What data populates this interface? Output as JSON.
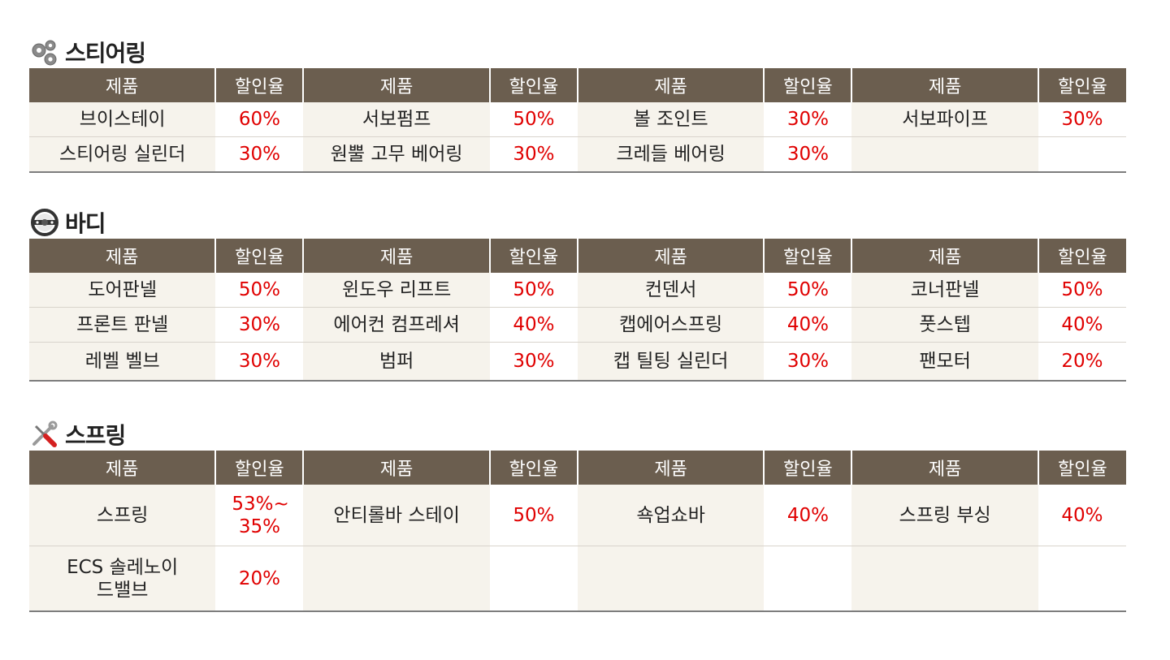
{
  "headers": {
    "product": "제품",
    "rate": "할인율"
  },
  "sections": [
    {
      "title": "스티어링",
      "icon": "gears-icon",
      "rows": [
        [
          [
            "브이스테이",
            "60%"
          ],
          [
            "서보펌프",
            "50%"
          ],
          [
            "볼 조인트",
            "30%"
          ],
          [
            "서보파이프",
            "30%"
          ]
        ],
        [
          [
            "스티어링 실린더",
            "30%"
          ],
          [
            "원뿔 고무 베어링",
            "30%"
          ],
          [
            "크레들 베어링",
            "30%"
          ],
          [
            "",
            ""
          ]
        ]
      ]
    },
    {
      "title": "바디",
      "icon": "steering-wheel-icon",
      "rows": [
        [
          [
            "도어판넬",
            "50%"
          ],
          [
            "윈도우 리프트",
            "50%"
          ],
          [
            "컨덴서",
            "50%"
          ],
          [
            "코너판넬",
            "50%"
          ]
        ],
        [
          [
            "프론트 판넬",
            "30%"
          ],
          [
            "에어컨 컴프레셔",
            "40%"
          ],
          [
            "캡에어스프링",
            "40%"
          ],
          [
            "풋스텝",
            "40%"
          ]
        ],
        [
          [
            "레벨 벨브",
            "30%"
          ],
          [
            "범퍼",
            "30%"
          ],
          [
            "캡 틸팅 실린더",
            "30%"
          ],
          [
            "팬모터",
            "20%"
          ]
        ]
      ]
    },
    {
      "title": "스프링",
      "icon": "tools-icon",
      "rows": [
        [
          [
            "스프링",
            "53%~ 35%"
          ],
          [
            "안티롤바 스테이",
            "50%"
          ],
          [
            "쇽업쇼바",
            "40%"
          ],
          [
            "스프링 부싱",
            "40%"
          ]
        ],
        [
          [
            "ECS 솔레노이드밸브",
            "20%"
          ],
          [
            "",
            ""
          ],
          [
            "",
            ""
          ],
          [
            "",
            ""
          ]
        ]
      ]
    }
  ],
  "colors": {
    "header_bg": "#6b5e4f",
    "product_bg": "#f6f3ec",
    "rate_text": "#e00000"
  }
}
